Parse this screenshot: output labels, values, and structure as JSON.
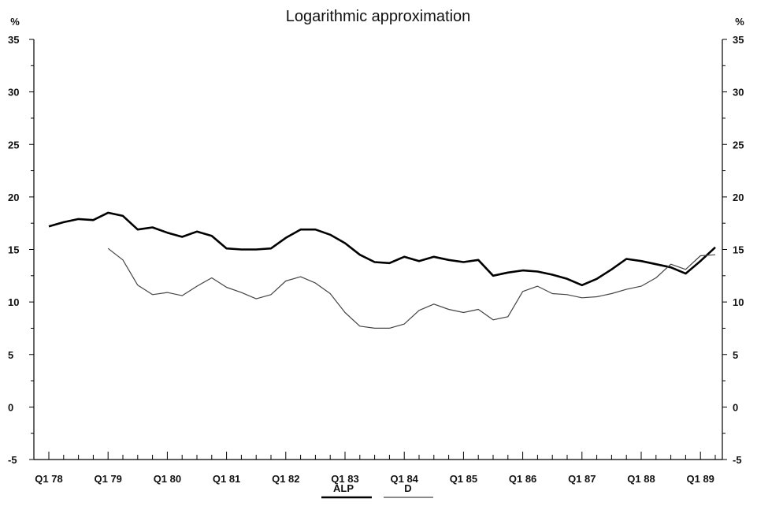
{
  "chart_data": {
    "type": "line",
    "title": "Logarithmic approximation",
    "ylabel_left": "%",
    "ylabel_right": "%",
    "ylim": [
      -5,
      35
    ],
    "yticks": [
      -5,
      0,
      5,
      10,
      15,
      20,
      25,
      30,
      35
    ],
    "xtick_labels": [
      "Q1 78",
      "Q1 79",
      "Q1 80",
      "Q1 81",
      "Q1 82",
      "Q1 83",
      "Q1 84",
      "Q1 85",
      "Q1 86",
      "Q1 87",
      "Q1 88",
      "Q1 89"
    ],
    "x": [
      "Q1 78",
      "Q2 78",
      "Q3 78",
      "Q4 78",
      "Q1 79",
      "Q2 79",
      "Q3 79",
      "Q4 79",
      "Q1 80",
      "Q2 80",
      "Q3 80",
      "Q4 80",
      "Q1 81",
      "Q2 81",
      "Q3 81",
      "Q4 81",
      "Q1 82",
      "Q2 82",
      "Q3 82",
      "Q4 82",
      "Q1 83",
      "Q2 83",
      "Q3 83",
      "Q4 83",
      "Q1 84",
      "Q2 84",
      "Q3 84",
      "Q4 84",
      "Q1 85",
      "Q2 85",
      "Q3 85",
      "Q4 85",
      "Q1 86",
      "Q2 86",
      "Q3 86",
      "Q4 86",
      "Q1 87",
      "Q2 87",
      "Q3 87",
      "Q4 87",
      "Q1 88",
      "Q2 88",
      "Q3 88",
      "Q4 88",
      "Q1 89",
      "Q2 89"
    ],
    "series": [
      {
        "name": "ALP",
        "color": "#000000",
        "values": [
          17.2,
          17.6,
          17.9,
          17.8,
          18.5,
          18.2,
          16.9,
          17.1,
          16.6,
          16.2,
          16.7,
          16.3,
          15.1,
          15.0,
          15.0,
          15.1,
          16.1,
          16.9,
          16.9,
          16.4,
          15.6,
          14.5,
          13.8,
          13.7,
          14.3,
          13.9,
          14.3,
          14.0,
          13.8,
          14.0,
          12.5,
          12.8,
          13.0,
          12.9,
          12.6,
          12.2,
          11.6,
          12.2,
          13.1,
          14.1,
          13.9,
          13.6,
          13.3,
          12.7,
          13.9,
          15.2
        ]
      },
      {
        "name": "D",
        "color": "#444444",
        "values": [
          null,
          null,
          null,
          null,
          15.1,
          14.0,
          11.6,
          10.7,
          10.9,
          10.6,
          11.5,
          12.3,
          11.4,
          10.9,
          10.3,
          10.7,
          12.0,
          12.4,
          11.8,
          10.8,
          9.0,
          7.7,
          7.5,
          7.5,
          7.9,
          9.2,
          9.8,
          9.3,
          9.0,
          9.3,
          8.3,
          8.6,
          11.0,
          11.5,
          10.8,
          10.7,
          10.4,
          10.5,
          10.8,
          11.2,
          11.5,
          12.3,
          13.6,
          13.1,
          14.4,
          14.5
        ]
      }
    ],
    "legend_position": "bottom-center",
    "grid": false
  }
}
